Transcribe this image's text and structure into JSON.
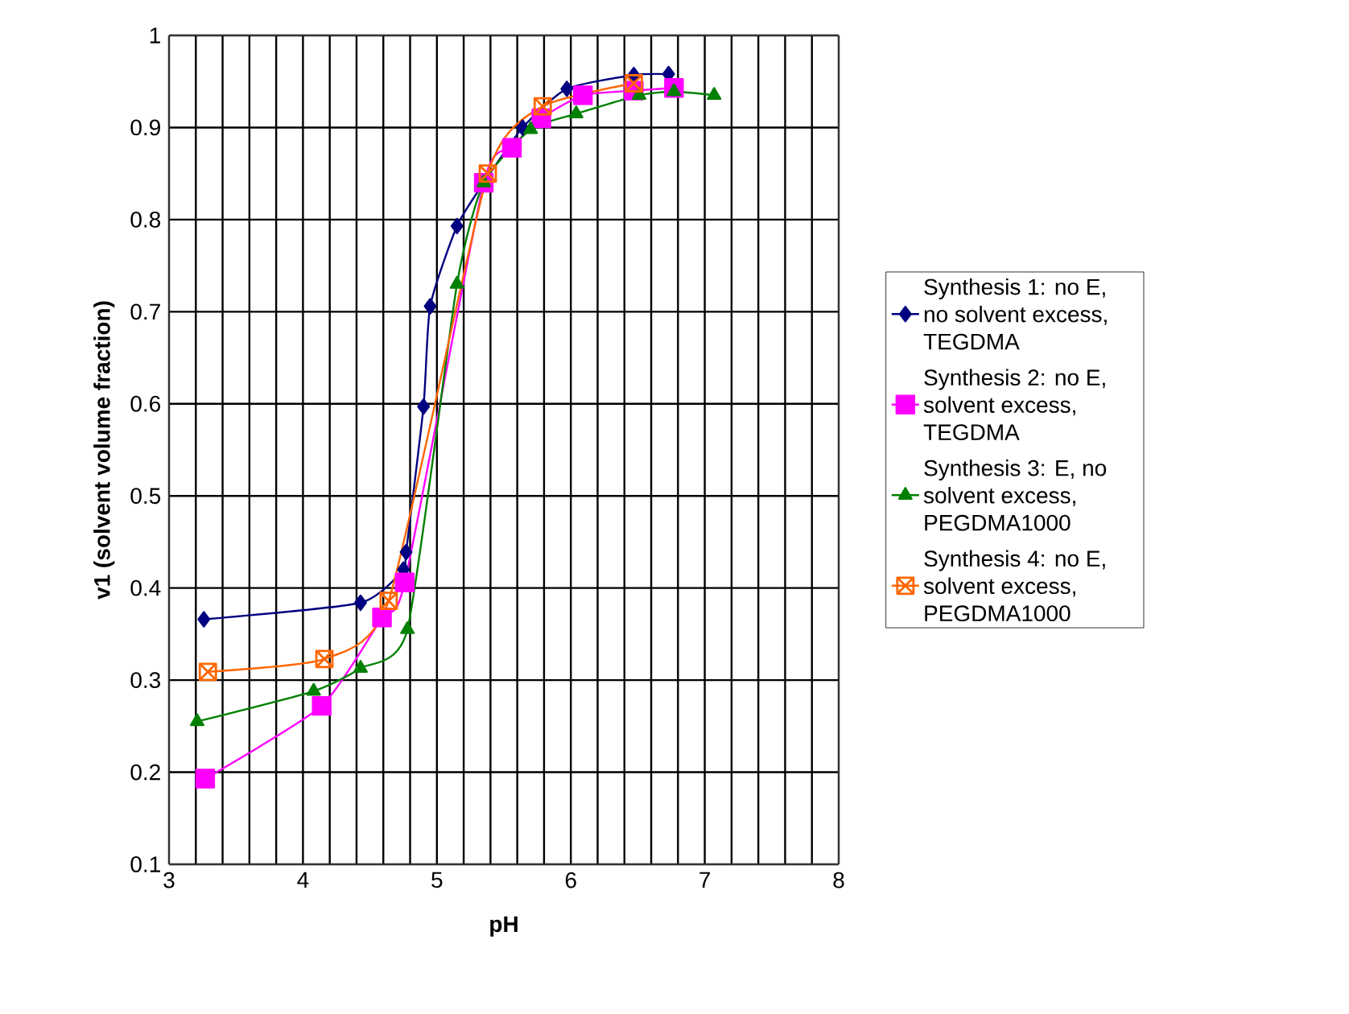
{
  "chart_data": {
    "type": "line",
    "xlabel": "pH",
    "ylabel": "v1 (solvent volume fraction)",
    "xlim": [
      3,
      8
    ],
    "ylim": [
      0.1,
      1
    ],
    "xticks": [
      3,
      4,
      5,
      6,
      7,
      8
    ],
    "yticks": [
      0.1,
      0.2,
      0.3,
      0.4,
      0.5,
      0.6,
      0.7,
      0.8,
      0.9,
      1
    ],
    "grid": true,
    "legend": "right",
    "line_style": "solid",
    "series": [
      {
        "name": "Synthesis 1: no E, no solvent excess, TEGDMA",
        "color": "#000080",
        "marker": "diamond",
        "x": [
          3.26,
          4.43,
          4.75,
          4.77,
          4.9,
          4.95,
          5.15,
          5.35,
          5.64,
          5.97,
          6.47,
          6.73
        ],
        "values": [
          0.366,
          0.384,
          0.42,
          0.439,
          0.597,
          0.706,
          0.793,
          0.84,
          0.9,
          0.942,
          0.957,
          0.958
        ]
      },
      {
        "name": "Synthesis 2: no E, solvent excess, TEGDMA",
        "color": "#ff00ff",
        "marker": "square",
        "x": [
          3.27,
          4.14,
          4.59,
          4.76,
          5.35,
          5.56,
          5.78,
          6.09,
          6.47,
          6.77
        ],
        "values": [
          0.193,
          0.272,
          0.368,
          0.406,
          0.84,
          0.878,
          0.91,
          0.935,
          0.94,
          0.943
        ]
      },
      {
        "name": "Synthesis 3: E, no solvent excess, PEGDMA1000",
        "color": "#008000",
        "marker": "triangle",
        "x": [
          3.21,
          4.08,
          4.43,
          4.78,
          5.15,
          5.35,
          5.7,
          6.04,
          6.51,
          6.77,
          7.07
        ],
        "values": [
          0.255,
          0.288,
          0.313,
          0.355,
          0.73,
          0.84,
          0.898,
          0.915,
          0.935,
          0.939,
          0.935
        ]
      },
      {
        "name": "Synthesis 4: no E, solvent excess, PEGDMA1000",
        "color": "#ff6600",
        "marker": "cross",
        "x": [
          3.29,
          4.16,
          4.64,
          5.38,
          5.79,
          6.47
        ],
        "values": [
          0.309,
          0.323,
          0.386,
          0.85,
          0.923,
          0.948
        ]
      }
    ]
  }
}
